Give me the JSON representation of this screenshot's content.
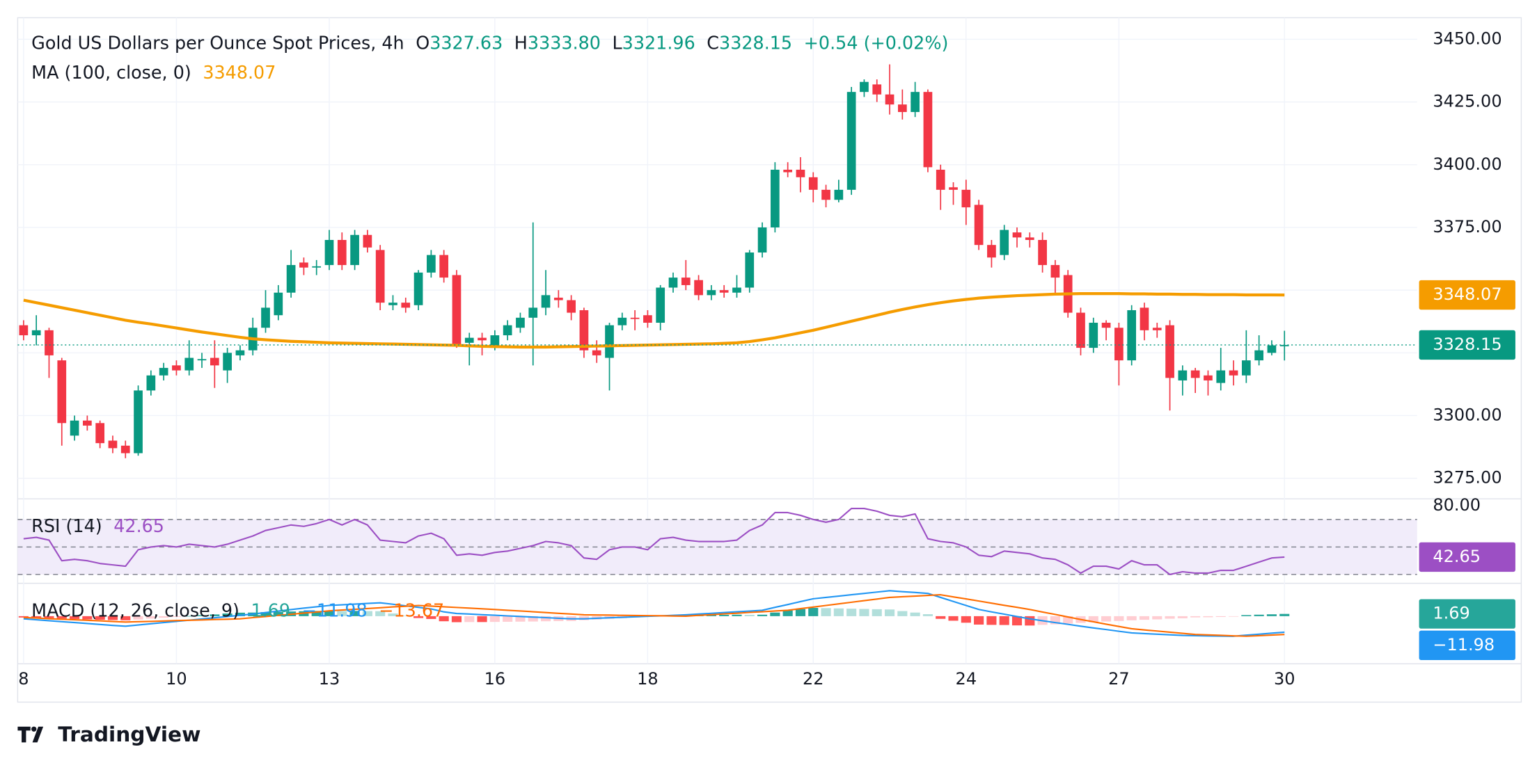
{
  "chart_data": {
    "type": "candlestick",
    "title": "Gold US Dollars per Ounce Spot Prices, 4h",
    "ohlc_prefixes": [
      "O",
      "H",
      "L",
      "C"
    ],
    "ohlc_labels": [
      "3327.63",
      "3333.80",
      "3321.96",
      "3328.15"
    ],
    "change_label": "+0.54 (+0.02%)",
    "categories": [
      "8",
      null,
      null,
      null,
      null,
      null,
      null,
      null,
      null,
      null,
      null,
      null,
      "10",
      null,
      null,
      null,
      null,
      null,
      null,
      null,
      null,
      null,
      null,
      null,
      "13",
      null,
      null,
      null,
      null,
      null,
      null,
      null,
      null,
      null,
      null,
      null,
      null,
      "16",
      null,
      null,
      null,
      null,
      null,
      null,
      null,
      null,
      null,
      null,
      null,
      "18",
      null,
      null,
      null,
      null,
      null,
      null,
      null,
      null,
      null,
      null,
      null,
      null,
      "22",
      null,
      null,
      null,
      null,
      null,
      null,
      null,
      null,
      null,
      null,
      null,
      "24",
      null,
      null,
      null,
      null,
      null,
      null,
      null,
      null,
      null,
      null,
      null,
      "27",
      null,
      null,
      null,
      null,
      null,
      null,
      null,
      null,
      null,
      null,
      null,
      null,
      "30"
    ],
    "open": [
      3336,
      3332,
      3334,
      3322,
      3292,
      3298,
      3297,
      3290,
      3288,
      3285,
      3310,
      3316,
      3320,
      3318,
      3322,
      3323,
      3318,
      3324,
      3326,
      3335,
      3340,
      3349,
      3361,
      3359,
      3360,
      3370,
      3360,
      3372,
      3366,
      3344,
      3345,
      3344,
      3357,
      3364,
      3356,
      3329,
      3331,
      3328,
      3332,
      3335,
      3339,
      3343,
      3347,
      3346,
      3342,
      3326,
      3323,
      3336,
      3339,
      3340,
      3337,
      3351,
      3355,
      3354,
      3348,
      3350,
      3349,
      3351,
      3365,
      3375,
      3398,
      3398,
      3395,
      3390,
      3386,
      3390,
      3429,
      3432,
      3428,
      3424,
      3421,
      3429,
      3398,
      3391,
      3390,
      3384,
      3368,
      3364,
      3373,
      3371,
      3370,
      3360,
      3356,
      3341,
      3327,
      3337,
      3335,
      3322,
      3343,
      3335,
      3336,
      3314,
      3318,
      3316,
      3313,
      3318,
      3316,
      3322,
      3325,
      3327.63
    ],
    "high": [
      3338,
      3340,
      3335,
      3323,
      3300,
      3300,
      3298,
      3292,
      3290,
      3312,
      3318,
      3321,
      3322,
      3330,
      3325,
      3330,
      3327,
      3328,
      3339,
      3350,
      3352,
      3366,
      3363,
      3362,
      3374,
      3373,
      3374,
      3374,
      3368,
      3348,
      3347,
      3358,
      3366,
      3366,
      3358,
      3333,
      3333,
      3334,
      3338,
      3341,
      3377,
      3358,
      3350,
      3348,
      3343,
      3330,
      3337,
      3341,
      3342,
      3342,
      3352,
      3357,
      3362,
      3356,
      3352,
      3352,
      3356,
      3366,
      3377,
      3401,
      3401,
      3403,
      3397,
      3392,
      3394,
      3431,
      3434,
      3434,
      3440,
      3430,
      3433,
      3430,
      3400,
      3393,
      3394,
      3386,
      3370,
      3376,
      3375,
      3373,
      3373,
      3362,
      3358,
      3343,
      3339,
      3338,
      3337,
      3344,
      3345,
      3337,
      3338,
      3320,
      3319,
      3318,
      3327,
      3322,
      3334,
      3332,
      3330,
      3333.8
    ],
    "low": [
      3330,
      3328,
      3315,
      3288,
      3290,
      3294,
      3287,
      3285,
      3283,
      3284,
      3308,
      3314,
      3316,
      3316,
      3319,
      3311,
      3313,
      3322,
      3324,
      3333,
      3338,
      3347,
      3356,
      3356,
      3358,
      3358,
      3358,
      3365,
      3342,
      3342,
      3341,
      3342,
      3355,
      3353,
      3327,
      3320,
      3324,
      3326,
      3330,
      3333,
      3320,
      3340,
      3343,
      3338,
      3323,
      3321,
      3310,
      3334,
      3334,
      3335,
      3334,
      3349,
      3350,
      3346,
      3346,
      3347,
      3347,
      3349,
      3363,
      3373,
      3395,
      3389,
      3385,
      3383,
      3385,
      3388,
      3427,
      3425,
      3420,
      3418,
      3419,
      3397,
      3382,
      3384,
      3376,
      3366,
      3359,
      3362,
      3367,
      3367,
      3357,
      3348,
      3339,
      3324,
      3325,
      3330,
      3312,
      3320,
      3330,
      3331,
      3302,
      3308,
      3309,
      3308,
      3310,
      3312,
      3313,
      3320,
      3324,
      3321.96
    ],
    "close": [
      3332,
      3334,
      3324,
      3297,
      3298,
      3296,
      3289,
      3287,
      3285,
      3310,
      3316,
      3319,
      3318,
      3323,
      3322.5,
      3320,
      3325,
      3326,
      3335,
      3343,
      3349,
      3360,
      3359,
      3359.5,
      3370,
      3360,
      3372,
      3367,
      3345,
      3345,
      3343,
      3357,
      3364,
      3355,
      3328,
      3331,
      3330,
      3332,
      3336,
      3339,
      3343,
      3348,
      3346,
      3341,
      3326,
      3324,
      3336,
      3339,
      3338.5,
      3337,
      3351,
      3355,
      3352,
      3348,
      3350,
      3349,
      3351,
      3365,
      3375,
      3398,
      3397,
      3395,
      3390,
      3386,
      3390,
      3429,
      3433,
      3428,
      3424,
      3421,
      3429,
      3399,
      3390,
      3390,
      3383,
      3368,
      3363,
      3374,
      3371,
      3370,
      3360,
      3355,
      3341,
      3327,
      3337,
      3335,
      3322,
      3342,
      3334,
      3334,
      3315,
      3318,
      3315,
      3314,
      3318,
      3316,
      3322,
      3326,
      3328,
      3328.15
    ],
    "up_color": "#089981",
    "down_color": "#f23645",
    "ylim": [
      3266.8,
      3458.6
    ],
    "yticks": [
      {
        "value": 3450,
        "label": "3450.00"
      },
      {
        "value": 3425,
        "label": "3425.00"
      },
      {
        "value": 3400,
        "label": "3400.00"
      },
      {
        "value": 3375,
        "label": "3375.00"
      },
      {
        "value": 3350,
        "label": "3350.00"
      },
      {
        "value": 3325,
        "label": "3325.00"
      },
      {
        "value": 3300,
        "label": "3300.00"
      },
      {
        "value": 3275,
        "label": "3275.00"
      }
    ],
    "hidden_tick_labels": [
      4,
      5
    ],
    "grid": true,
    "ma": {
      "label": "MA (100, close, 0)",
      "value_label": "3348.07",
      "color": "#f59c00",
      "values": [
        3346,
        3345,
        3344,
        3343,
        3342,
        3341,
        3340,
        3339,
        3338,
        3337.2,
        3336.5,
        3335.7,
        3334.9,
        3334.1,
        3333.3,
        3332.6,
        3331.9,
        3331.2,
        3330.6,
        3330.2,
        3329.9,
        3329.6,
        3329.4,
        3329.2,
        3329,
        3328.9,
        3328.8,
        3328.7,
        3328.6,
        3328.5,
        3328.4,
        3328.3,
        3328.2,
        3328.1,
        3328,
        3327.8,
        3327.6,
        3327.5,
        3327.4,
        3327.3,
        3327.3,
        3327.3,
        3327.4,
        3327.5,
        3327.6,
        3327.7,
        3327.8,
        3327.9,
        3328,
        3328.1,
        3328.2,
        3328.3,
        3328.4,
        3328.5,
        3328.6,
        3328.8,
        3329,
        3329.5,
        3330.2,
        3331,
        3332,
        3333,
        3334,
        3335.2,
        3336.4,
        3337.6,
        3338.8,
        3340,
        3341.2,
        3342.3,
        3343.3,
        3344.2,
        3345,
        3345.7,
        3346.3,
        3346.8,
        3347.2,
        3347.5,
        3347.8,
        3348,
        3348.2,
        3348.4,
        3348.5,
        3348.6,
        3348.6,
        3348.6,
        3348.6,
        3348.5,
        3348.5,
        3348.4,
        3348.4,
        3348.3,
        3348.3,
        3348.2,
        3348.2,
        3348.2,
        3348.1,
        3348.1,
        3348.1,
        3348.07
      ]
    },
    "rsi": {
      "label": "RSI (14)",
      "value_label": "42.65",
      "color": "#9c4fc4",
      "band_fill": "#f1ecfa",
      "bands": [
        70,
        50,
        30
      ],
      "ylim": [
        23.6,
        85
      ],
      "yticks": [
        {
          "value": 80,
          "label": "80.00"
        }
      ],
      "values": [
        56,
        57,
        55,
        40,
        41,
        40,
        38,
        37,
        36,
        48,
        50,
        51,
        50,
        52,
        51,
        50,
        52,
        55,
        58,
        62,
        64,
        66,
        65,
        67,
        70,
        66,
        70,
        66,
        55,
        54,
        53,
        58,
        60,
        56,
        44,
        45,
        44,
        46,
        47,
        49,
        51,
        54,
        53,
        51,
        42,
        41,
        48,
        50,
        50,
        48,
        56,
        57,
        55,
        54,
        54,
        54,
        55,
        62,
        66,
        75,
        75,
        73,
        70,
        68,
        70,
        78,
        78,
        76,
        73,
        72,
        74,
        56,
        54,
        53,
        50,
        44,
        43,
        47,
        46,
        45,
        42,
        41,
        37,
        31,
        36,
        36,
        34,
        40,
        37,
        37,
        30,
        32,
        31,
        31,
        33,
        33,
        36,
        39,
        42,
        42.65
      ]
    },
    "macd": {
      "label": "MACD (12, 26, close, 9)",
      "value_labels": [
        "1.69",
        "−11.98",
        "−13.67"
      ],
      "histogram_color": "#26a69a",
      "macd_color": "#2196f3",
      "signal_color": "#ff6d00",
      "hist_colors": [
        "#26a69a",
        "#b2dfdb",
        "#ff5252",
        "#ffcdd2"
      ],
      "ylim": [
        -35.6,
        23.1
      ],
      "histogram": [
        -1,
        -1.3,
        -1.5,
        -1.8,
        -2.1,
        -2.4,
        -2.7,
        -2.9,
        -3.1,
        -2.5,
        -1.8,
        -1.2,
        -0.6,
        0.1,
        0.7,
        1.3,
        2,
        2.6,
        2.7,
        3,
        3.2,
        3.5,
        3.7,
        3.9,
        4,
        3.9,
        3.9,
        3.8,
        3.7,
        2,
        0.3,
        -1.4,
        -2.1,
        -3.8,
        -4.5,
        -4.4,
        -4.4,
        -4.3,
        -4.2,
        -4.1,
        -4,
        -3.8,
        -3.7,
        -3.6,
        -3,
        -2.5,
        -2,
        -1.5,
        -1,
        -0.5,
        -0.1,
        0.5,
        1,
        1,
        1,
        1,
        1.1,
        1,
        1.1,
        2.7,
        4.3,
        5.3,
        6.2,
        6,
        5.8,
        5.6,
        5.4,
        5.2,
        5,
        3.8,
        2.7,
        1.5,
        -2,
        -3.4,
        -4.9,
        -6.3,
        -6.5,
        -6.6,
        -6.9,
        -7,
        -6.5,
        -6.1,
        -5.5,
        -5,
        -4.6,
        -4,
        -3.6,
        -3.1,
        -2.7,
        -2.4,
        -1.9,
        -1.6,
        -0.9,
        -0.8,
        -0.6,
        -0.3,
        0.8,
        1.1,
        1.4,
        1.69
      ],
      "macd": [
        -2,
        -2.7,
        -3.4,
        -4.1,
        -4.8,
        -5.5,
        -6.2,
        -6.9,
        -7.5,
        -6.6,
        -5.7,
        -4.8,
        -3.9,
        -3,
        -2.1,
        -1.2,
        -0.3,
        0.6,
        1.6,
        2.7,
        3.8,
        4.9,
        6,
        7,
        8,
        8.5,
        9,
        9.5,
        10,
        8.9,
        7.7,
        6.6,
        5.4,
        3.2,
        2,
        1.6,
        1.1,
        0.7,
        0.2,
        -0.2,
        -0.7,
        -1.1,
        -1.6,
        -2,
        -2,
        -1.6,
        -1.2,
        -0.9,
        -0.5,
        -0.1,
        0.2,
        0.6,
        1,
        1.6,
        2.1,
        2.7,
        3.3,
        3.8,
        4.4,
        6.6,
        8.7,
        10.9,
        13,
        14,
        15,
        16,
        17,
        18,
        19,
        18.3,
        17.7,
        17,
        14,
        11,
        8,
        5,
        3.2,
        1.5,
        -0.3,
        -2,
        -3.4,
        -4.8,
        -6.1,
        -7.5,
        -8.8,
        -10,
        -11.3,
        -12.5,
        -13,
        -13.5,
        -13.9,
        -14.4,
        -14.6,
        -14.8,
        -14.9,
        -15,
        -14.2,
        -13.5,
        -12.7,
        -11.98
      ],
      "signal": [
        -1,
        -1.4,
        -1.9,
        -2.3,
        -2.7,
        -3.1,
        -3.5,
        -4,
        -4.4,
        -4.1,
        -3.9,
        -3.6,
        -3.3,
        -3.1,
        -2.8,
        -2.5,
        -2.3,
        -2,
        -1.1,
        -0.3,
        0.6,
        1.4,
        2.3,
        3.1,
        4,
        4.6,
        5.1,
        5.7,
        6.3,
        6.9,
        7.4,
        8,
        7.5,
        7,
        6.5,
        6,
        5.5,
        5,
        4.4,
        3.9,
        3.3,
        2.7,
        2.1,
        1.6,
        1,
        0.9,
        0.8,
        0.6,
        0.5,
        0.4,
        0.3,
        0.1,
        0,
        0.6,
        1.1,
        1.7,
        2.2,
        2.8,
        3.3,
        3.9,
        4.4,
        5.6,
        6.8,
        8,
        9.2,
        10.4,
        11.6,
        12.8,
        14,
        14.5,
        15,
        15.5,
        16,
        14.4,
        12.9,
        11.3,
        9.7,
        8.1,
        6.6,
        5,
        3.1,
        1.3,
        -0.6,
        -2.5,
        -4.2,
        -6,
        -7.7,
        -9.4,
        -10.3,
        -11.1,
        -12,
        -12.8,
        -13.7,
        -14,
        -14.3,
        -14.7,
        -15,
        -14.6,
        -14.1,
        -13.67
      ]
    },
    "branding": "TradingView"
  }
}
